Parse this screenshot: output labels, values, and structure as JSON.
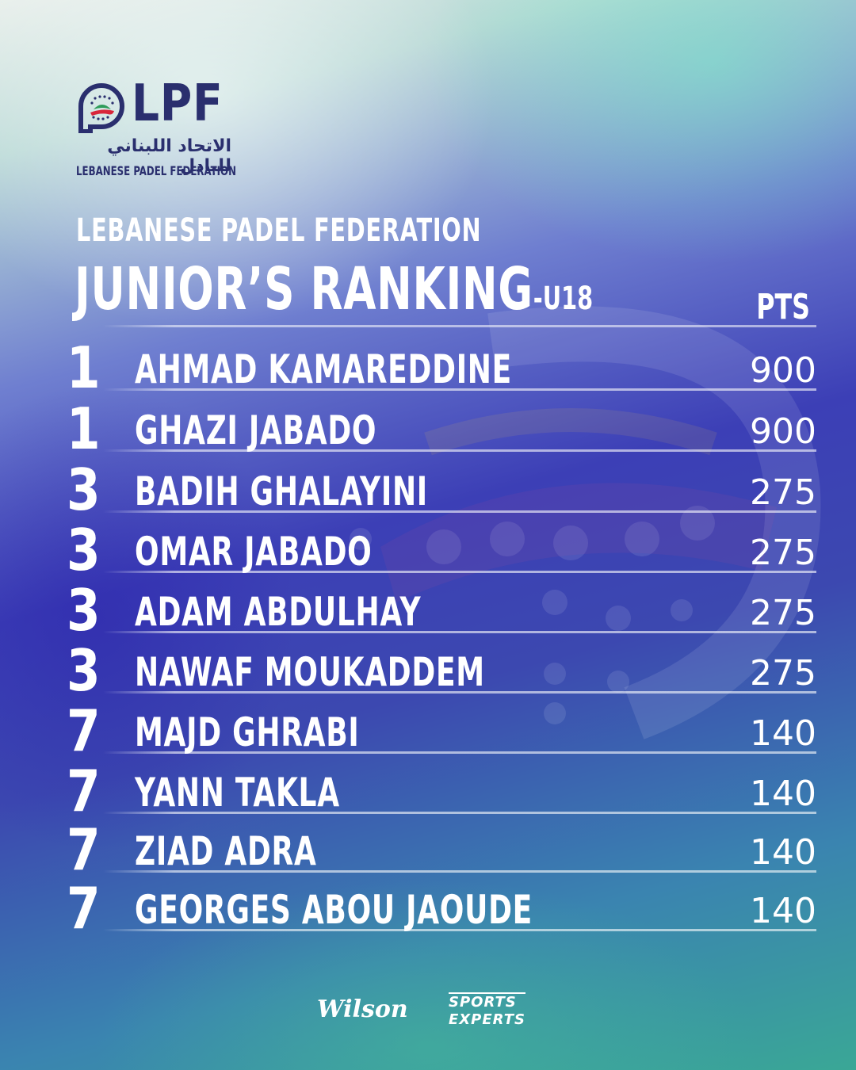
{
  "logo": {
    "abbr": "LPF",
    "arabic": "الاتحاد اللبناني للبادل",
    "english": "LEBANESE PADEL FEDERATION",
    "colors": {
      "navy": "#2a2f6e",
      "green": "#2e9c5a",
      "red": "#d8263a"
    }
  },
  "header": {
    "subtitle": "LEBANESE PADEL FEDERATION",
    "title": "JUNIOR’S RANKING",
    "title_suffix": "-U18",
    "points_label": "PTS"
  },
  "rankings": [
    {
      "rank": "1",
      "name": "AHMAD KAMAREDDINE",
      "points": "900"
    },
    {
      "rank": "1",
      "name": "GHAZI JABADO",
      "points": "900"
    },
    {
      "rank": "3",
      "name": "BADIH GHALAYINI",
      "points": "275"
    },
    {
      "rank": "3",
      "name": "OMAR JABADO",
      "points": "275"
    },
    {
      "rank": "3",
      "name": "ADAM ABDULHAY",
      "points": "275"
    },
    {
      "rank": "3",
      "name": "NAWAF MOUKADDEM",
      "points": "275"
    },
    {
      "rank": "7",
      "name": "MAJD GHRABI",
      "points": "140"
    },
    {
      "rank": "7",
      "name": "YANN TAKLA",
      "points": "140"
    },
    {
      "rank": "7",
      "name": "ZIAD ADRA",
      "points": "140"
    },
    {
      "rank": "7",
      "name": "GEORGES ABOU JAOUDE",
      "points": "140"
    }
  ],
  "sponsors": {
    "wilson": "Wilson",
    "sports_experts_line1": "SPORTS",
    "sports_experts_line2": "EXPERTS"
  }
}
